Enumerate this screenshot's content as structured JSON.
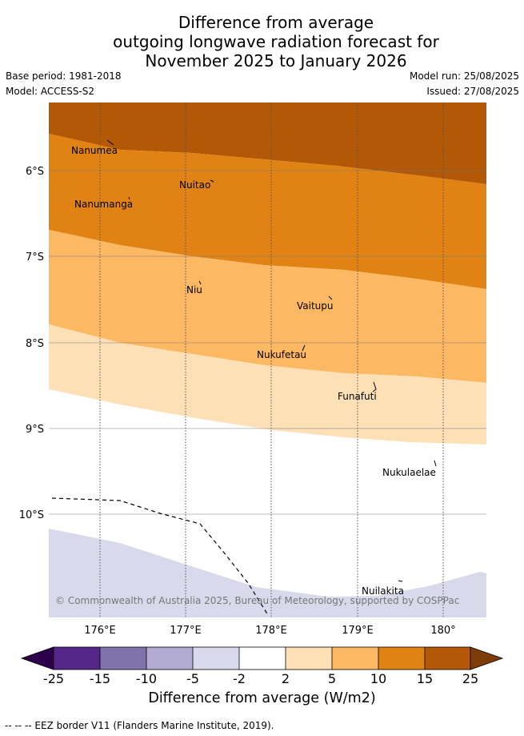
{
  "title": {
    "line1": "Difference from average",
    "line2": "outgoing longwave radiation forecast for",
    "line3": "November 2025 to January 2026"
  },
  "meta": {
    "base_period": "Base period: 1981-2018",
    "model": "Model: ACCESS-S2",
    "model_run": "Model run: 25/08/2025",
    "issued": "Issued: 27/08/2025"
  },
  "map": {
    "lat_labels": [
      "6°S",
      "7°S",
      "8°S",
      "9°S",
      "10°S"
    ],
    "lon_labels": [
      "176°E",
      "177°E",
      "178°E",
      "179°E",
      "180°"
    ],
    "places": [
      "Nanumea",
      "Nuitao",
      "Nanumanga",
      "Niu",
      "Vaitupu",
      "Nukufetau",
      "Funafuti",
      "Nukulaelae",
      "Nuilakita"
    ],
    "copyright": "© Commonwealth of Australia 2025, Bureau of Meteorology, supported by COSPPac",
    "colors": {
      "class_25": "#b35806",
      "class_15": "#e08214",
      "class_10": "#fdb863",
      "class_5": "#fee0b6",
      "neutral": "#ffffff",
      "class_-5": "#d8daeb",
      "class_-10": "#b2abd2",
      "class_-15": "#8073ac",
      "class_-25": "#542788",
      "over": "#7f3b08",
      "under": "#2d004b"
    }
  },
  "colorbar": {
    "ticks": [
      "-25",
      "-15",
      "-10",
      "-5",
      "-2",
      "2",
      "5",
      "10",
      "15",
      "25"
    ],
    "label": "Difference from average (W/m2)"
  },
  "footer": "--  --  -- EEZ border V11 (Flanders Marine Institute, 2019)."
}
